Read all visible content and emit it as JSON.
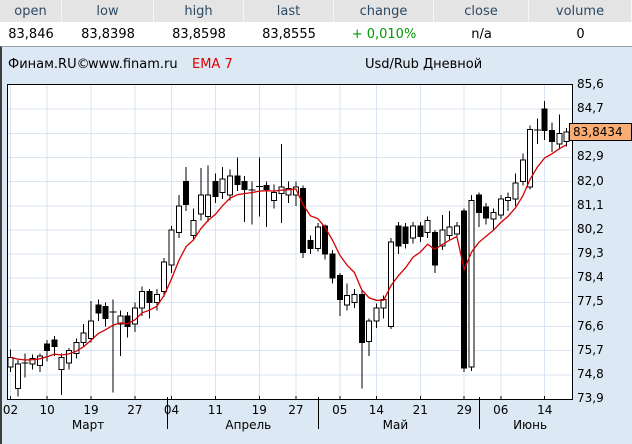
{
  "header": {
    "columns": [
      {
        "label": "open",
        "value": "83,846"
      },
      {
        "label": "low",
        "value": "83,8398"
      },
      {
        "label": "high",
        "value": "83,8598"
      },
      {
        "label": "last",
        "value": "83,8555"
      },
      {
        "label": "change",
        "value": "+ 0,010%"
      },
      {
        "label": "close",
        "value": "n/a"
      },
      {
        "label": "volume",
        "value": "0"
      }
    ]
  },
  "titlebar": {
    "brand": "Финам.RU©",
    "site": "www.finam.ru",
    "indicator": "EMA 7",
    "title": "Usd/Rub Дневной"
  },
  "colors": {
    "panel_bg": "#dce8f3",
    "plot_bg": "#ffffff",
    "grid": "#d9e5f2",
    "outline": "#000000",
    "up_fill": "#ffffff",
    "down_fill": "#000000",
    "ema": "#d40000",
    "indicator_text": "#dd0000",
    "badge_bg": "#f9ad72",
    "change_positive": "#009900",
    "header_label": "#2c4a63"
  },
  "chart_data": {
    "type": "candlestick",
    "symbol": "Usd/Rub",
    "period": "Дневной",
    "indicator": "EMA 7",
    "ema_period": 7,
    "current_price": 83.8434,
    "current_price_label": "83,8434",
    "ylim": [
      73.9,
      85.6
    ],
    "y_ticks": [
      {
        "v": 85.6,
        "label": "85,6"
      },
      {
        "v": 84.7,
        "label": "84,7"
      },
      {
        "v": 82.9,
        "label": "82,9"
      },
      {
        "v": 82.0,
        "label": "82,0"
      },
      {
        "v": 81.1,
        "label": "81,1"
      },
      {
        "v": 80.2,
        "label": "80,2"
      },
      {
        "v": 79.3,
        "label": "79,3"
      },
      {
        "v": 78.4,
        "label": "78,4"
      },
      {
        "v": 77.5,
        "label": "77,5"
      },
      {
        "v": 76.6,
        "label": "76,6"
      },
      {
        "v": 75.7,
        "label": "75,7"
      },
      {
        "v": 74.8,
        "label": "74,8"
      },
      {
        "v": 73.9,
        "label": "73,9"
      }
    ],
    "hidden_grid_price": 83.8,
    "x_ticks": [
      {
        "i": 0,
        "label": "02"
      },
      {
        "i": 5,
        "label": "10"
      },
      {
        "i": 11,
        "label": "19"
      },
      {
        "i": 17,
        "label": "27"
      },
      {
        "i": 22,
        "label": "04"
      },
      {
        "i": 28,
        "label": "11"
      },
      {
        "i": 34,
        "label": "19"
      },
      {
        "i": 39,
        "label": "27"
      },
      {
        "i": 45,
        "label": "05"
      },
      {
        "i": 50,
        "label": "14"
      },
      {
        "i": 56,
        "label": "21"
      },
      {
        "i": 62,
        "label": "29"
      },
      {
        "i": 67,
        "label": "06"
      },
      {
        "i": 73,
        "label": "14"
      }
    ],
    "months": [
      {
        "i": 10.6,
        "label": "Март"
      },
      {
        "i": 32.5,
        "label": "Апрель"
      },
      {
        "i": 52.6,
        "label": "Май"
      },
      {
        "i": 71.0,
        "label": "Июнь"
      }
    ],
    "month_separators": [
      21.35,
      42.0,
      64.0
    ],
    "candles": [
      [
        75.1,
        75.75,
        74.9,
        75.45
      ],
      [
        74.3,
        75.35,
        74.0,
        75.2
      ],
      [
        75.2,
        75.6,
        74.7,
        75.25
      ],
      [
        75.2,
        75.55,
        75.0,
        75.4
      ],
      [
        75.15,
        75.6,
        74.9,
        75.5
      ],
      [
        75.95,
        76.1,
        75.3,
        75.7
      ],
      [
        76.1,
        76.25,
        75.5,
        75.85
      ],
      [
        75.0,
        75.6,
        74.05,
        75.45
      ],
      [
        75.25,
        75.8,
        75.0,
        75.7
      ],
      [
        75.6,
        76.15,
        75.4,
        76.0
      ],
      [
        76.0,
        76.7,
        75.85,
        76.35
      ],
      [
        76.15,
        77.55,
        76.0,
        76.8
      ],
      [
        77.4,
        77.6,
        76.8,
        77.1
      ],
      [
        77.35,
        77.5,
        76.6,
        76.9
      ],
      [
        77.2,
        77.6,
        74.15,
        77.15
      ],
      [
        76.7,
        77.2,
        75.5,
        77.0
      ],
      [
        77.0,
        77.15,
        76.2,
        76.6
      ],
      [
        76.7,
        77.5,
        76.4,
        77.3
      ],
      [
        77.3,
        78.1,
        77.0,
        77.9
      ],
      [
        77.9,
        78.0,
        76.9,
        77.5
      ],
      [
        77.5,
        78.0,
        77.2,
        77.8
      ],
      [
        77.9,
        79.15,
        77.7,
        79.0
      ],
      [
        78.9,
        80.35,
        78.6,
        80.2
      ],
      [
        80.1,
        81.5,
        79.9,
        81.1
      ],
      [
        82.0,
        82.55,
        80.9,
        81.15
      ],
      [
        80.0,
        81.0,
        79.85,
        80.55
      ],
      [
        80.8,
        82.5,
        80.55,
        81.5
      ],
      [
        80.7,
        82.6,
        80.5,
        81.5
      ],
      [
        82.0,
        82.3,
        81.2,
        81.45
      ],
      [
        81.6,
        82.55,
        81.35,
        82.1
      ],
      [
        81.5,
        82.45,
        81.3,
        82.2
      ],
      [
        82.2,
        82.9,
        81.65,
        81.9
      ],
      [
        82.0,
        82.2,
        80.5,
        81.7
      ],
      [
        81.7,
        82.0,
        80.4,
        81.68
      ],
      [
        81.8,
        82.9,
        80.7,
        81.82
      ],
      [
        81.85,
        82.0,
        80.3,
        81.7
      ],
      [
        81.3,
        81.9,
        81.0,
        81.6
      ],
      [
        81.55,
        83.4,
        80.45,
        81.8
      ],
      [
        81.5,
        82.0,
        81.2,
        81.75
      ],
      [
        81.5,
        82.0,
        81.1,
        81.8
      ],
      [
        81.75,
        81.85,
        79.15,
        79.35
      ],
      [
        79.8,
        80.0,
        79.3,
        79.5
      ],
      [
        79.5,
        80.45,
        79.4,
        80.3
      ],
      [
        80.35,
        80.4,
        79.1,
        79.3
      ],
      [
        79.3,
        79.45,
        78.2,
        78.4
      ],
      [
        78.5,
        78.6,
        77.0,
        77.6
      ],
      [
        77.4,
        78.2,
        77.2,
        77.75
      ],
      [
        77.5,
        78.0,
        77.3,
        77.8
      ],
      [
        77.8,
        77.95,
        74.3,
        76.0
      ],
      [
        76.05,
        76.9,
        75.5,
        76.8
      ],
      [
        76.8,
        77.45,
        76.55,
        77.3
      ],
      [
        77.3,
        77.75,
        76.9,
        77.6
      ],
      [
        76.6,
        79.9,
        76.5,
        79.75
      ],
      [
        80.35,
        80.5,
        79.3,
        79.6
      ],
      [
        80.3,
        80.45,
        79.5,
        79.7
      ],
      [
        79.9,
        80.5,
        79.7,
        80.35
      ],
      [
        80.35,
        80.5,
        79.75,
        79.95
      ],
      [
        80.1,
        80.7,
        79.9,
        80.55
      ],
      [
        80.1,
        80.2,
        78.6,
        78.9
      ],
      [
        79.6,
        80.75,
        79.45,
        80.2
      ],
      [
        80.0,
        80.9,
        79.85,
        80.3
      ],
      [
        80.05,
        80.5,
        79.9,
        80.35
      ],
      [
        80.9,
        81.0,
        74.9,
        75.05
      ],
      [
        75.1,
        81.5,
        74.95,
        81.3
      ],
      [
        81.5,
        81.6,
        80.3,
        80.85
      ],
      [
        81.05,
        81.2,
        80.4,
        80.65
      ],
      [
        80.6,
        81.0,
        80.2,
        80.85
      ],
      [
        80.75,
        81.5,
        80.6,
        81.35
      ],
      [
        81.3,
        81.6,
        80.9,
        81.4
      ],
      [
        81.35,
        82.3,
        81.1,
        81.95
      ],
      [
        82.0,
        83.05,
        81.85,
        82.8
      ],
      [
        81.8,
        84.1,
        81.7,
        83.95
      ],
      [
        83.9,
        84.35,
        83.4,
        83.92
      ],
      [
        84.7,
        85.0,
        83.55,
        83.9
      ],
      [
        83.9,
        84.2,
        83.1,
        83.5
      ],
      [
        83.4,
        84.5,
        83.2,
        83.8
      ],
      [
        83.5,
        84.0,
        83.3,
        83.84
      ]
    ]
  }
}
